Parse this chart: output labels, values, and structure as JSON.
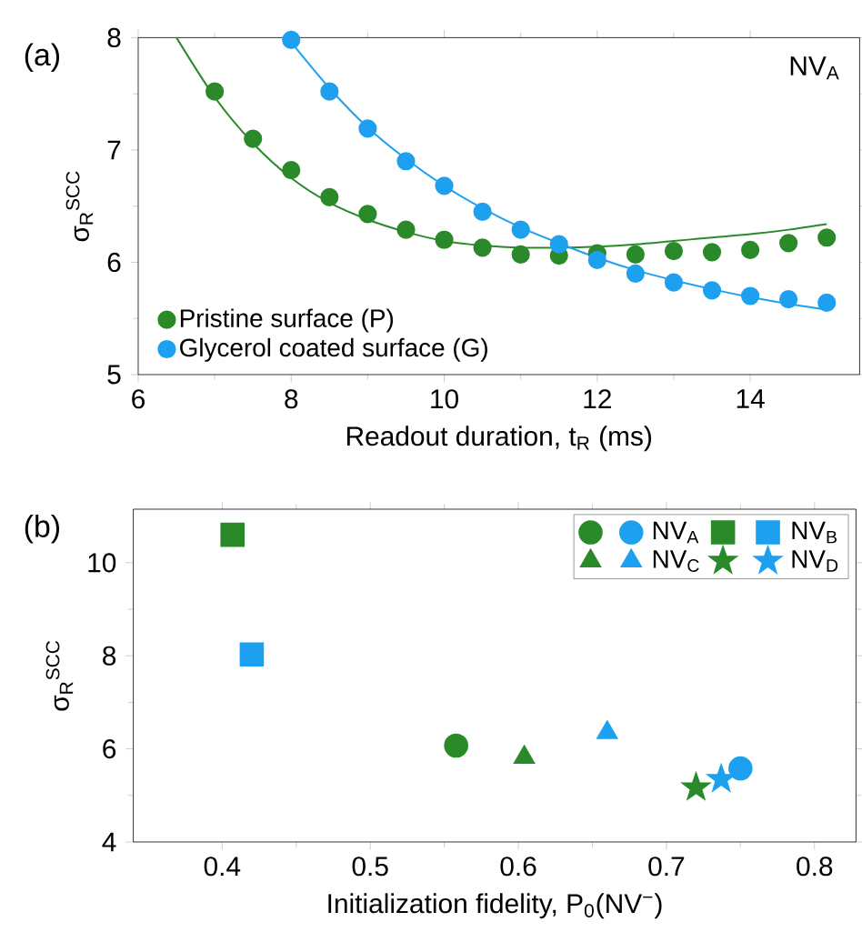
{
  "chart_data": [
    {
      "type": "scatter",
      "title": "(a)",
      "xlabel": "Readout duration, t$_{R}$ (ms)",
      "ylabel": "σ$_{R}$$^{SCC}$",
      "annotations": [
        "NV$_{A}$"
      ],
      "xlim": [
        6,
        15.43
      ],
      "ylim": [
        5,
        8
      ],
      "xticks": [
        6,
        8,
        10,
        12,
        14
      ],
      "yticks": [
        5,
        6,
        7,
        8
      ],
      "legend": "bottom left",
      "series": [
        {
          "name": "Pristine surface (P)",
          "color": "#2a8a2a",
          "marker": "circle",
          "x": [
            7,
            7.5,
            8,
            8.5,
            9,
            9.5,
            10,
            10.5,
            11,
            11.5,
            12,
            12.5,
            13,
            13.5,
            14,
            14.5,
            15
          ],
          "values": [
            7.52,
            7.1,
            6.82,
            6.58,
            6.43,
            6.29,
            6.2,
            6.13,
            6.07,
            6.06,
            6.08,
            6.07,
            6.1,
            6.09,
            6.11,
            6.17,
            6.22
          ]
        },
        {
          "name": "Glycerol coated surface (G)",
          "color": "#1ea0f0",
          "marker": "circle",
          "x": [
            8,
            8.5,
            9,
            9.5,
            10,
            10.5,
            11,
            11.5,
            12,
            12.5,
            13,
            13.5,
            14,
            14.5,
            15
          ],
          "values": [
            7.98,
            7.52,
            7.19,
            6.9,
            6.68,
            6.45,
            6.29,
            6.16,
            6.02,
            5.9,
            5.82,
            5.75,
            5.7,
            5.67,
            5.64
          ]
        },
        {
          "type": "line",
          "color": "#2a8a2a",
          "x": [
            6.5,
            7,
            7.5,
            8,
            8.5,
            9,
            9.5,
            10,
            10.5,
            11,
            11.5,
            12,
            12.5,
            13,
            13.5,
            14,
            14.5,
            15
          ],
          "values": [
            8.0,
            7.47,
            7.06,
            6.75,
            6.53,
            6.38,
            6.27,
            6.19,
            6.15,
            6.13,
            6.13,
            6.14,
            6.16,
            6.19,
            6.22,
            6.25,
            6.29,
            6.34
          ]
        },
        {
          "type": "line",
          "color": "#1ea0f0",
          "x": [
            7.95,
            8.5,
            9,
            9.5,
            10,
            10.5,
            11,
            11.5,
            12,
            12.5,
            13,
            13.5,
            14,
            14.5,
            15
          ],
          "values": [
            8.0,
            7.55,
            7.2,
            6.92,
            6.68,
            6.48,
            6.31,
            6.17,
            6.04,
            5.93,
            5.84,
            5.76,
            5.69,
            5.63,
            5.58
          ]
        }
      ]
    },
    {
      "type": "scatter",
      "title": "(b)",
      "xlabel": "Initialization fidelity, P$_{0}$(NV$^{−}$)",
      "ylabel": "σ$_{R}$$^{SCC}$",
      "xlim": [
        0.34,
        0.828
      ],
      "ylim": [
        4,
        11.15
      ],
      "xticks": [
        0.4,
        0.5,
        0.6,
        0.7,
        0.8
      ],
      "yticks": [
        4,
        6,
        8,
        10
      ],
      "legend": "top right",
      "series": [
        {
          "color": "#2a8a2a",
          "marker": "circle",
          "x": [
            0.558
          ],
          "values": [
            6.07
          ]
        },
        {
          "name": "NV$_{A}$",
          "color": "#1ea0f0",
          "marker": "circle",
          "x": [
            0.75
          ],
          "values": [
            5.58
          ]
        },
        {
          "color": "#2a8a2a",
          "marker": "square",
          "x": [
            0.407
          ],
          "values": [
            10.6
          ]
        },
        {
          "name": "NV$_{B}$",
          "color": "#1ea0f0",
          "marker": "square",
          "x": [
            0.42
          ],
          "values": [
            8.03
          ]
        },
        {
          "color": "#2a8a2a",
          "marker": "triangle",
          "x": [
            0.604
          ],
          "values": [
            5.82
          ]
        },
        {
          "name": "NV$_{C}$",
          "color": "#1ea0f0",
          "marker": "triangle",
          "x": [
            0.66
          ],
          "values": [
            6.35
          ]
        },
        {
          "color": "#2a8a2a",
          "marker": "star",
          "x": [
            0.72
          ],
          "values": [
            5.17
          ]
        },
        {
          "name": "NV$_{D}$",
          "color": "#1ea0f0",
          "marker": "star",
          "x": [
            0.737
          ],
          "values": [
            5.35
          ]
        }
      ]
    }
  ]
}
